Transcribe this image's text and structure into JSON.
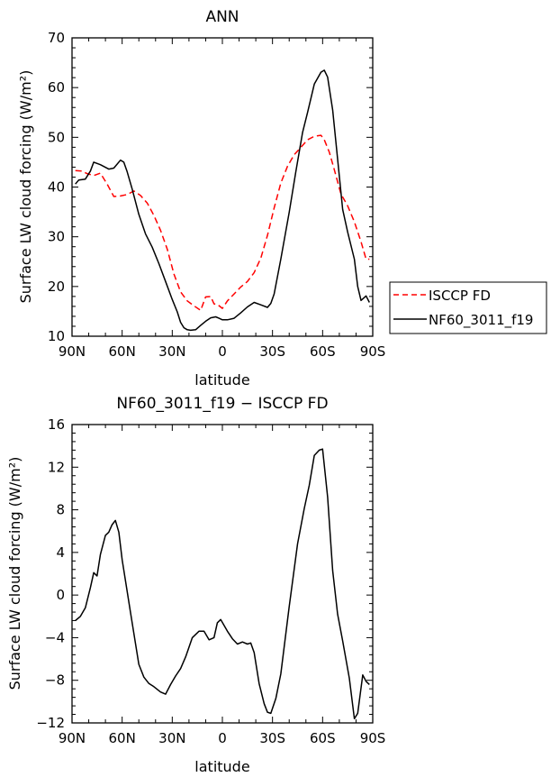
{
  "chart_data": [
    {
      "type": "line",
      "title": "ANN",
      "xlabel": "latitude",
      "ylabel": "Surface LW cloud forcing (W/m²)",
      "xlim": [
        90,
        -90
      ],
      "ylim": [
        10,
        70
      ],
      "xticks": [
        90,
        60,
        30,
        0,
        -30,
        -60,
        -90
      ],
      "xtick_labels": [
        "90N",
        "60N",
        "30N",
        "0",
        "30S",
        "60S",
        "90S"
      ],
      "yticks": [
        10,
        20,
        30,
        40,
        50,
        60,
        70
      ],
      "ytick_labels": [
        "10",
        "20",
        "30",
        "40",
        "50",
        "60",
        "70"
      ],
      "grid": false,
      "legend_position": "right",
      "series": [
        {
          "name": "ISCCP FD",
          "color": "#ff0000",
          "dash": "dashed",
          "x": [
            88,
            84,
            81,
            77,
            73,
            69,
            65,
            61,
            57,
            53,
            49,
            45,
            41,
            37,
            33,
            29,
            25,
            21,
            17,
            13,
            10,
            7,
            5,
            3,
            0,
            -3,
            -7,
            -11,
            -15,
            -19,
            -23,
            -27,
            -31,
            -35,
            -39,
            -43,
            -47,
            -51,
            -55,
            -59,
            -61,
            -64,
            -67,
            -71,
            -75,
            -79,
            -83,
            -86,
            -88
          ],
          "y": [
            43.3,
            43.2,
            42.7,
            42.3,
            42.8,
            40.6,
            38.1,
            38.2,
            38.5,
            39.2,
            38.3,
            36.8,
            34.3,
            31.3,
            27.5,
            22.5,
            18.9,
            17.1,
            16.1,
            15.2,
            17.9,
            18.0,
            16.5,
            16.4,
            15.6,
            17.1,
            18.5,
            19.9,
            21.0,
            22.8,
            25.7,
            30.3,
            35.8,
            40.8,
            44.2,
            46.5,
            48.0,
            49.5,
            50.2,
            50.4,
            49.5,
            47.0,
            43.5,
            38.6,
            36.2,
            33.0,
            29.0,
            25.5,
            25.5
          ]
        },
        {
          "name": "NF60_3011_f19",
          "color": "#000000",
          "dash": "solid",
          "x": [
            88,
            86,
            82,
            79,
            77,
            73,
            68,
            65,
            61,
            59,
            57,
            54,
            50,
            46,
            42,
            38,
            34,
            30,
            27,
            25,
            23,
            21,
            19,
            16,
            13,
            10,
            7,
            4,
            2,
            0,
            -3,
            -7,
            -11,
            -15,
            -19,
            -23,
            -27,
            -29,
            -31,
            -35,
            -40,
            -44,
            -48,
            -51,
            -55,
            -59,
            -61,
            -63,
            -66,
            -69,
            -72,
            -75,
            -79,
            -81,
            -83,
            -86,
            -88
          ],
          "y": [
            40.6,
            41.4,
            41.6,
            43.2,
            45.0,
            44.5,
            43.6,
            43.8,
            45.4,
            45.0,
            43.1,
            39.6,
            34.5,
            30.6,
            27.9,
            24.6,
            21.0,
            17.4,
            14.9,
            12.8,
            11.7,
            11.3,
            11.2,
            11.3,
            12.2,
            13.0,
            13.7,
            13.9,
            13.6,
            13.3,
            13.3,
            13.6,
            14.7,
            15.9,
            16.8,
            16.3,
            15.8,
            16.6,
            18.5,
            25.5,
            34.9,
            43.1,
            51.0,
            55.0,
            60.7,
            63.1,
            63.5,
            62.1,
            55.5,
            45.6,
            35.5,
            30.9,
            25.5,
            20.0,
            17.2,
            18.1,
            16.8
          ]
        }
      ]
    },
    {
      "type": "line",
      "title": "NF60_3011_f19 − ISCCP FD",
      "xlabel": "latitude",
      "ylabel": "Surface LW cloud forcing (W/m²)",
      "xlim": [
        90,
        -90
      ],
      "ylim": [
        -12,
        16
      ],
      "xticks": [
        90,
        60,
        30,
        0,
        -30,
        -60,
        -90
      ],
      "xtick_labels": [
        "90N",
        "60N",
        "30N",
        "0",
        "30S",
        "60S",
        "90S"
      ],
      "yticks": [
        -12,
        -8,
        -4,
        0,
        4,
        8,
        12,
        16
      ],
      "ytick_labels": [
        "−12",
        "−8",
        "−4",
        "0",
        "4",
        "8",
        "12",
        "16"
      ],
      "grid": false,
      "series": [
        {
          "color": "#000000",
          "dash": "solid",
          "x": [
            88,
            85,
            82,
            79,
            77,
            75,
            73,
            70,
            68,
            66,
            64,
            62,
            60,
            55,
            50,
            47,
            44,
            41,
            37,
            34,
            31,
            28,
            25,
            22,
            18,
            14,
            11,
            8,
            5,
            3,
            1,
            -3,
            -6,
            -9,
            -12,
            -15,
            -17,
            -19,
            -22,
            -25,
            -27,
            -29,
            -32,
            -35,
            -40,
            -45,
            -49,
            -52,
            -55,
            -58,
            -60,
            -63,
            -66,
            -69,
            -72,
            -76,
            -79,
            -81,
            -84,
            -86,
            -88
          ],
          "y": [
            -2.4,
            -2.0,
            -1.2,
            0.7,
            2.1,
            1.8,
            3.8,
            5.6,
            5.9,
            6.6,
            7.0,
            5.9,
            3.3,
            -1.6,
            -6.5,
            -7.7,
            -8.3,
            -8.6,
            -9.1,
            -9.3,
            -8.4,
            -7.6,
            -6.9,
            -5.8,
            -4.0,
            -3.4,
            -3.4,
            -4.2,
            -4.0,
            -2.6,
            -2.3,
            -3.4,
            -4.1,
            -4.6,
            -4.4,
            -4.6,
            -4.5,
            -5.4,
            -8.3,
            -10.2,
            -11.0,
            -11.1,
            -9.7,
            -7.4,
            -1.1,
            4.8,
            8.1,
            10.3,
            13.1,
            13.6,
            13.7,
            9.2,
            2.3,
            -1.8,
            -4.3,
            -7.8,
            -11.6,
            -11.1,
            -7.5,
            -8.1,
            -8.4
          ]
        }
      ]
    }
  ],
  "legend": {
    "entries": [
      {
        "label": "ISCCP FD",
        "color": "#ff0000",
        "dash": "dashed"
      },
      {
        "label": "NF60_3011_f19",
        "color": "#000000",
        "dash": "solid"
      }
    ]
  }
}
